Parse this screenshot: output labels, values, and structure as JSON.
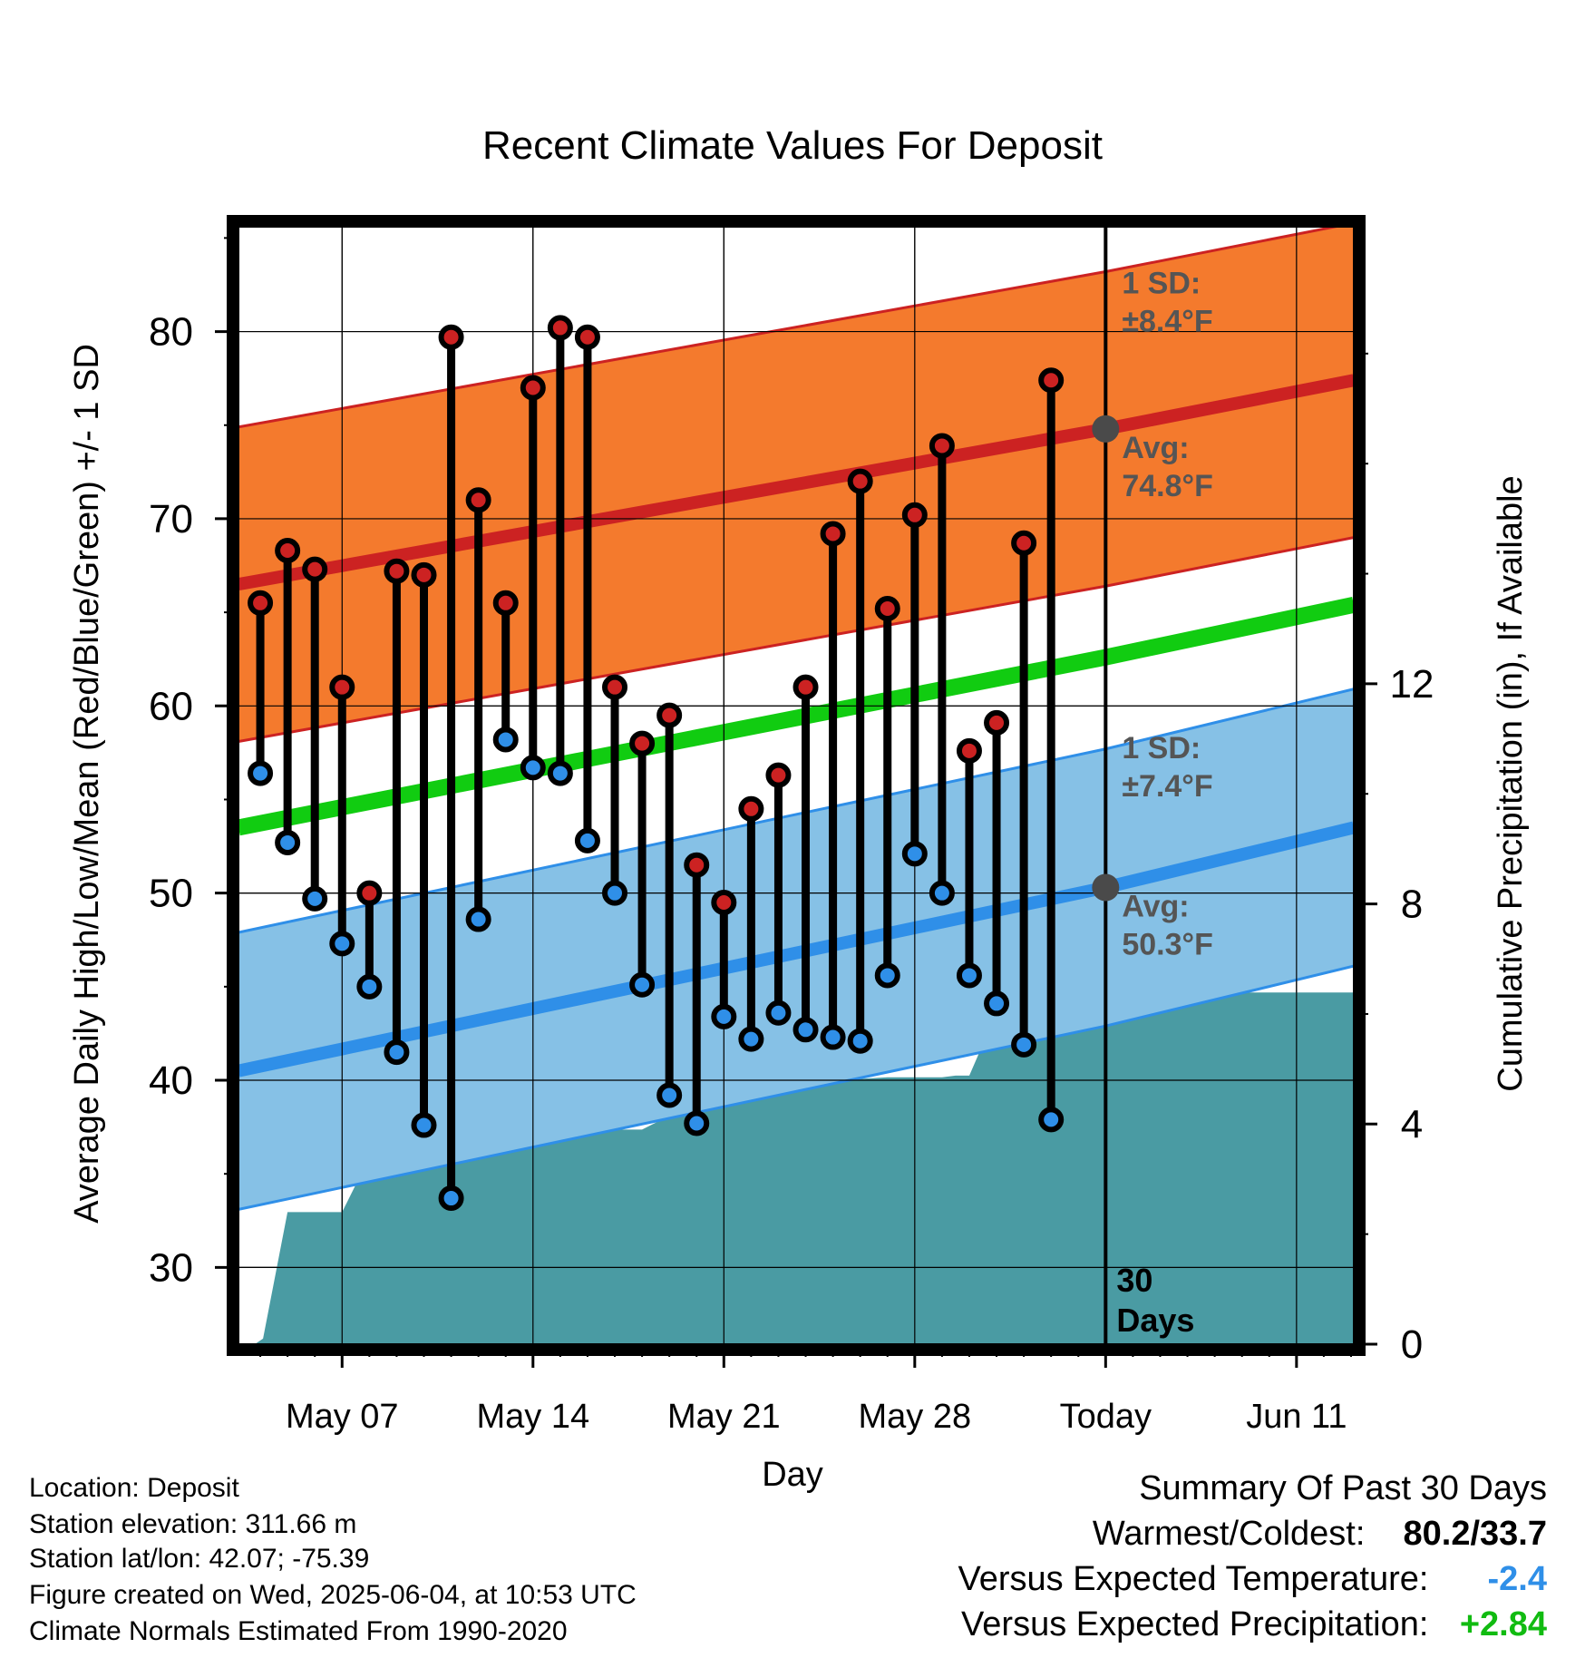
{
  "chart_data": {
    "type": "line",
    "title": "Recent Climate Values For Deposit",
    "xlabel": "Day",
    "ylabel": "Average Daily High/Low/Mean (Red/Blue/Green) +/- 1 SD",
    "y2label": "Cumulative Precipitation (in), If Available",
    "ylim": [
      25.9,
      85.6
    ],
    "y2lim": [
      0,
      20
    ],
    "x_tick_labels": [
      "May 07",
      "May 14",
      "May 21",
      "May 28",
      "Today",
      "Jun 11"
    ],
    "x_tick_days": [
      7,
      14,
      21,
      28,
      35,
      42
    ],
    "xlim": [
      3.2,
      44.1
    ],
    "y_ticks": [
      30,
      40,
      50,
      60,
      70,
      80
    ],
    "y2_ticks": [
      0,
      4,
      8,
      12
    ],
    "grid": true,
    "colors": {
      "high": "#cc2222",
      "low": "#2f8fe8",
      "mean": "#11cc11",
      "high_band": "#f47a2d",
      "low_band": "#86c1e6",
      "precip": "#4a9ba3",
      "today_marker": "#4a4a4a"
    },
    "normals": {
      "day": [
        3.2,
        35,
        44.1
      ],
      "high_avg": [
        66.5,
        74.8,
        77.4
      ],
      "high_sd": 8.4,
      "low_avg": [
        40.5,
        50.3,
        53.5
      ],
      "low_sd": 7.4,
      "mean_avg": [
        53.5,
        62.6,
        65.4
      ]
    },
    "series": [
      {
        "name": "High",
        "day": [
          4,
          5,
          6,
          7,
          8,
          9,
          10,
          11,
          12,
          13,
          14,
          15,
          16,
          17,
          18,
          19,
          20,
          21,
          22,
          23,
          24,
          25,
          26,
          27,
          28,
          29,
          30,
          31,
          32,
          33,
          34
        ],
        "values": [
          65.5,
          68.3,
          67.3,
          61.0,
          50.0,
          67.2,
          67.0,
          79.7,
          71.0,
          65.5,
          77.0,
          80.2,
          79.7,
          61.0,
          58.0,
          59.5,
          51.5,
          49.5,
          54.5,
          56.3,
          61.0,
          69.2,
          72.0,
          65.2,
          70.2,
          73.9,
          57.6,
          59.1,
          68.7,
          77.4,
          null
        ]
      },
      {
        "name": "Low",
        "day": [
          4,
          5,
          6,
          7,
          8,
          9,
          10,
          11,
          12,
          13,
          14,
          15,
          16,
          17,
          18,
          19,
          20,
          21,
          22,
          23,
          24,
          25,
          26,
          27,
          28,
          29,
          30,
          31,
          32,
          33,
          34
        ],
        "values": [
          56.4,
          52.7,
          49.7,
          47.3,
          45.0,
          41.5,
          37.6,
          33.7,
          48.6,
          58.2,
          56.7,
          56.4,
          52.8,
          50.0,
          45.1,
          39.2,
          37.7,
          43.4,
          42.2,
          43.6,
          42.7,
          42.3,
          42.1,
          45.6,
          52.1,
          50.0,
          45.6,
          44.1,
          41.9,
          37.9,
          null
        ]
      },
      {
        "name": "Cumulative Precipitation",
        "day": [
          3.2,
          3.8,
          4.1,
          5.0,
          6.0,
          6.5,
          7.0,
          8.0,
          9.0,
          10.0,
          11.0,
          12.0,
          13.0,
          13.5,
          14.0,
          15.0,
          16.0,
          17.0,
          18.0,
          19.0,
          20.0,
          21.0,
          22.0,
          23.0,
          24.0,
          25.0,
          26.0,
          27.0,
          28.0,
          29.0,
          29.5,
          30.0,
          30.5,
          31.0,
          35.0,
          44.1
        ],
        "values": [
          0,
          0,
          0.1,
          2.4,
          2.4,
          2.4,
          2.4,
          3.4,
          3.5,
          3.5,
          3.5,
          3.5,
          3.7,
          3.75,
          3.75,
          3.85,
          3.9,
          3.9,
          3.9,
          4.15,
          4.5,
          4.7,
          4.8,
          4.82,
          4.82,
          4.82,
          4.82,
          4.85,
          4.85,
          4.85,
          4.88,
          4.88,
          5.45,
          6.39,
          6.39,
          6.39
        ]
      }
    ],
    "annotations": {
      "high_sd_label": "1 SD:",
      "high_sd_value": "±8.4°F",
      "high_avg_label": "Avg:",
      "high_avg_value": "74.8°F",
      "low_sd_label": "1 SD:",
      "low_sd_value": "±7.4°F",
      "low_avg_label": "Avg:",
      "low_avg_value": "50.3°F",
      "window_line1": "30",
      "window_line2": "Days"
    }
  },
  "footer": {
    "location": "Location: Deposit",
    "elevation": "Station elevation: 311.66 m",
    "latlon": "Station lat/lon: 42.07; -75.39",
    "created": "Figure created on Wed, 2025-06-04, at 10:53 UTC",
    "normals": "Climate Normals Estimated From 1990-2020"
  },
  "summary": {
    "title": "Summary Of Past 30 Days",
    "warm_cold_label": "Warmest/Coldest:",
    "warm_cold_value": "80.2/33.7",
    "temp_label": "Versus Expected Temperature:",
    "temp_value": "-2.4",
    "temp_color": "#2f8fe8",
    "precip_label": "Versus Expected Precipitation:",
    "precip_value": "+2.84",
    "precip_color": "#11bb11"
  }
}
